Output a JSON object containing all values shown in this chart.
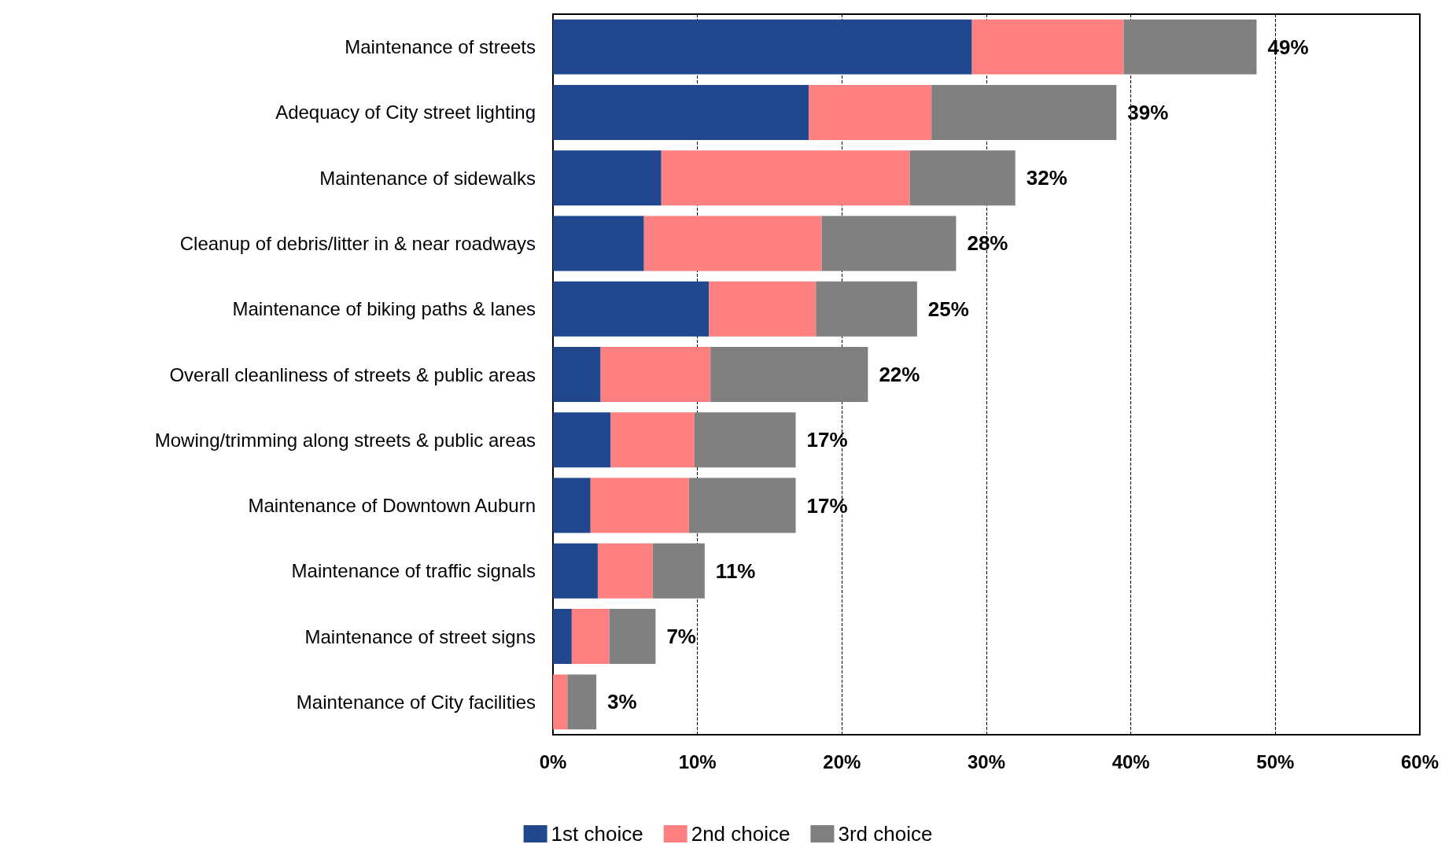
{
  "chart_data": {
    "type": "bar",
    "orientation": "horizontal",
    "stacked": true,
    "categories": [
      "Maintenance of streets",
      "Adequacy of City street lighting",
      "Maintenance of sidewalks",
      "Cleanup of debris/litter in & near roadways",
      "Maintenance of biking paths & lanes",
      "Overall cleanliness of streets & public areas",
      "Mowing/trimming along streets & public areas",
      "Maintenance of Downtown Auburn",
      "Maintenance of traffic signals",
      "Maintenance of street signs",
      "Maintenance of City facilities"
    ],
    "series": [
      {
        "name": "1st choice",
        "color": "#21478f",
        "values": [
          29.0,
          17.7,
          7.5,
          6.3,
          10.8,
          3.3,
          4.0,
          2.6,
          3.1,
          1.3,
          0
        ]
      },
      {
        "name": "2nd choice",
        "color": "#ff8080",
        "values": [
          10.5,
          8.5,
          17.2,
          12.3,
          7.4,
          7.6,
          5.8,
          6.8,
          3.8,
          2.6,
          1.0
        ]
      },
      {
        "name": "3rd choice",
        "color": "#808080",
        "values": [
          9.2,
          12.8,
          7.3,
          9.3,
          7.0,
          10.9,
          7.0,
          7.4,
          3.6,
          3.2,
          2.0
        ]
      }
    ],
    "totals": [
      "49%",
      "39%",
      "32%",
      "28%",
      "25%",
      "22%",
      "17%",
      "17%",
      "11%",
      "7%",
      "3%"
    ],
    "xlim": [
      0,
      60
    ],
    "xticks": [
      {
        "value": 0,
        "label": "0%"
      },
      {
        "value": 10,
        "label": "10%"
      },
      {
        "value": 20,
        "label": "20%"
      },
      {
        "value": 30,
        "label": "30%"
      },
      {
        "value": 40,
        "label": "40%"
      },
      {
        "value": 50,
        "label": "50%"
      },
      {
        "value": 60,
        "label": "60%"
      }
    ],
    "grid": "x",
    "legend": "bottom"
  }
}
